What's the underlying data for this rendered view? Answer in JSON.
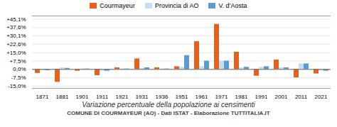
{
  "chart_data": {
    "type": "bar",
    "title": "Variazione percentuale della popolazione ai censimenti",
    "subtitle": "COMUNE DI COURMAYEUR (AO) - Dati ISTAT - Elaborazione TUTTITALIA.IT",
    "categories": [
      "1871",
      "1881",
      "1901",
      "1911",
      "1921",
      "1931",
      "1936",
      "1951",
      "1961",
      "1971",
      "1981",
      "1991",
      "2001",
      "2011",
      "2021"
    ],
    "series": [
      {
        "name": "Courmayeur",
        "color": "#e8601c",
        "values": [
          -3.5,
          -11.5,
          -1.5,
          -5.5,
          1.5,
          9.5,
          1.5,
          2.5,
          25.0,
          40.5,
          15.5,
          -6.0,
          8.5,
          -7.5,
          -4.0
        ]
      },
      {
        "name": "Provincia di AO",
        "color": "#c5dff0",
        "values": [
          -1.0,
          1.5,
          0.5,
          -1.5,
          0.5,
          1.0,
          0.5,
          2.0,
          2.5,
          7.5,
          1.5,
          2.0,
          1.5,
          5.0,
          -1.5
        ]
      },
      {
        "name": "V. d’Aosta",
        "color": "#5b9bd5",
        "values": [
          -1.0,
          1.0,
          0.5,
          -1.5,
          0.5,
          1.5,
          0.5,
          12.5,
          7.5,
          7.5,
          2.0,
          2.5,
          1.5,
          5.0,
          -1.5
        ]
      }
    ],
    "ylim": [
      -17,
      48
    ],
    "yticks": [
      {
        "value": -15.0,
        "label": "-15,0%"
      },
      {
        "value": -7.5,
        "label": "-7,5%"
      },
      {
        "value": 0.0,
        "label": "0,0%"
      },
      {
        "value": 7.5,
        "label": "+7,5%"
      },
      {
        "value": 15.0,
        "label": "+15,0%"
      },
      {
        "value": 22.6,
        "label": "+22,6%"
      },
      {
        "value": 30.1,
        "label": "+30,1%"
      },
      {
        "value": 37.6,
        "label": "+37,6%"
      },
      {
        "value": 45.1,
        "label": "+45,1%"
      }
    ],
    "grid": true,
    "legend": "top"
  }
}
